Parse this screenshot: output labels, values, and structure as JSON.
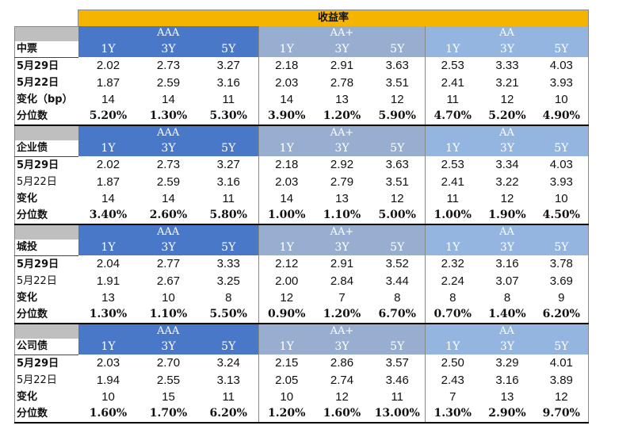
{
  "title": "收益率",
  "grades": [
    "AAA",
    "AA+",
    "AA"
  ],
  "terms": [
    "1Y",
    "3Y",
    "5Y"
  ],
  "sections": [
    {
      "name": "中票",
      "rows": [
        {
          "label": "5月29日",
          "bold": true,
          "values": [
            "2.02",
            "2.73",
            "3.27",
            "2.18",
            "2.91",
            "3.63",
            "2.53",
            "3.33",
            "4.03"
          ]
        },
        {
          "label": "5月22日",
          "bold": true,
          "values": [
            "1.87",
            "2.59",
            "3.16",
            "2.03",
            "2.78",
            "3.51",
            "2.41",
            "3.21",
            "3.93"
          ]
        },
        {
          "label": "变化（bp）",
          "bold": true,
          "values": [
            "14",
            "14",
            "11",
            "14",
            "13",
            "12",
            "11",
            "12",
            "10"
          ]
        },
        {
          "label": "分位数",
          "bold": true,
          "pct": true,
          "values": [
            "5.20%",
            "1.30%",
            "5.30%",
            "3.90%",
            "1.20%",
            "5.90%",
            "4.70%",
            "5.20%",
            "4.90%"
          ]
        }
      ]
    },
    {
      "name": "企业债",
      "rows": [
        {
          "label": "5月29日",
          "bold": true,
          "values": [
            "2.02",
            "2.73",
            "3.27",
            "2.18",
            "2.92",
            "3.63",
            "2.53",
            "3.34",
            "4.03"
          ]
        },
        {
          "label": "5月22日",
          "bold": false,
          "values": [
            "1.87",
            "2.59",
            "3.16",
            "2.03",
            "2.79",
            "3.51",
            "2.41",
            "3.22",
            "3.93"
          ]
        },
        {
          "label": "变化",
          "bold": true,
          "values": [
            "14",
            "14",
            "11",
            "14",
            "13",
            "12",
            "11",
            "12",
            "10"
          ]
        },
        {
          "label": "分位数",
          "bold": true,
          "pct": true,
          "values": [
            "3.40%",
            "2.60%",
            "5.80%",
            "1.00%",
            "1.10%",
            "5.00%",
            "1.00%",
            "1.90%",
            "4.50%"
          ]
        }
      ]
    },
    {
      "name": "城投",
      "rows": [
        {
          "label": "5月29日",
          "bold": true,
          "values": [
            "2.04",
            "2.77",
            "3.33",
            "2.12",
            "2.91",
            "3.52",
            "2.32",
            "3.16",
            "3.78"
          ]
        },
        {
          "label": "5月22日",
          "bold": false,
          "values": [
            "1.91",
            "2.67",
            "3.25",
            "2.00",
            "2.84",
            "3.44",
            "2.24",
            "3.07",
            "3.69"
          ]
        },
        {
          "label": "变化",
          "bold": true,
          "values": [
            "13",
            "10",
            "8",
            "12",
            "7",
            "8",
            "8",
            "8",
            "9"
          ]
        },
        {
          "label": "分位数",
          "bold": true,
          "pct": true,
          "values": [
            "1.30%",
            "1.10%",
            "5.50%",
            "0.90%",
            "1.20%",
            "6.70%",
            "0.70%",
            "1.40%",
            "6.20%"
          ]
        }
      ]
    },
    {
      "name": "公司债",
      "rows": [
        {
          "label": "5月29日",
          "bold": true,
          "values": [
            "2.03",
            "2.70",
            "3.24",
            "2.15",
            "2.86",
            "3.57",
            "2.50",
            "3.29",
            "4.01"
          ]
        },
        {
          "label": "5月22日",
          "bold": false,
          "values": [
            "1.94",
            "2.55",
            "3.13",
            "2.05",
            "2.74",
            "3.46",
            "2.43",
            "3.16",
            "3.89"
          ]
        },
        {
          "label": "变化",
          "bold": true,
          "values": [
            "10",
            "15",
            "11",
            "10",
            "12",
            "11",
            "7",
            "13",
            "12"
          ]
        },
        {
          "label": "分位数",
          "bold": true,
          "pct": true,
          "values": [
            "1.60%",
            "1.70%",
            "6.20%",
            "1.20%",
            "1.60%",
            "13.00%",
            "1.30%",
            "2.90%",
            "9.70%"
          ]
        }
      ]
    }
  ]
}
